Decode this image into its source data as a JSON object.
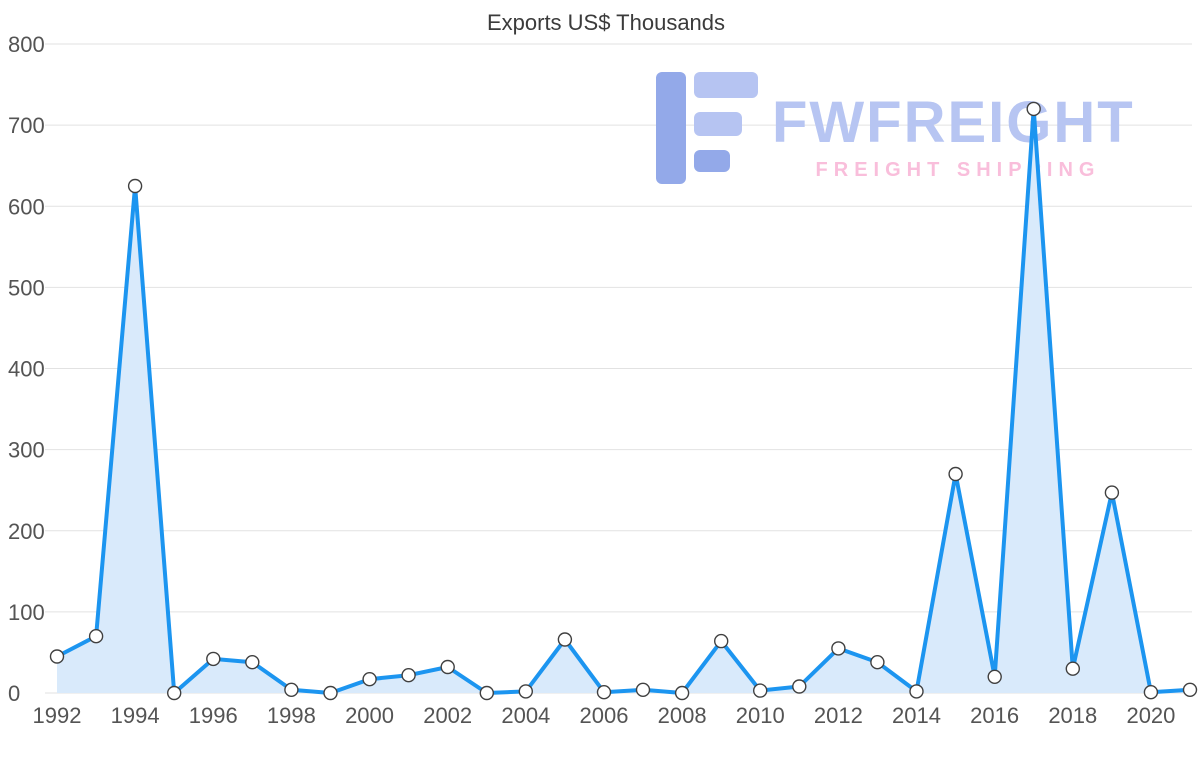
{
  "watermark": {
    "brand": "FWFREIGHT",
    "tagline": "FREIGHT SHIPPING",
    "brand_color": "#b7c5f2",
    "tagline_color": "#f9bedb",
    "logo_color_dark": "#93a9e9",
    "logo_color_light": "#b6c4f2"
  },
  "chart_data": {
    "type": "line",
    "title": "Exports US$ Thousands",
    "x": [
      1992,
      1993,
      1994,
      1995,
      1996,
      1997,
      1998,
      1999,
      2000,
      2001,
      2002,
      2003,
      2004,
      2005,
      2006,
      2007,
      2008,
      2009,
      2010,
      2011,
      2012,
      2013,
      2014,
      2015,
      2016,
      2017,
      2018,
      2019,
      2020,
      2021
    ],
    "values": [
      45,
      70,
      625,
      0,
      42,
      38,
      4,
      0,
      17,
      22,
      32,
      0,
      2,
      66,
      1,
      4,
      0,
      64,
      3,
      8,
      55,
      38,
      2,
      270,
      20,
      720,
      30,
      247,
      1,
      4
    ],
    "xlabel": "",
    "ylabel": "",
    "ylim": [
      0,
      800
    ],
    "ytick_step": 100,
    "xtick_step": 2,
    "grid": true,
    "legend_position": "none",
    "line_color": "#1c95f0",
    "area_fill": "#d9eafb",
    "marker_fill": "#ffffff",
    "marker_stroke": "#404040",
    "axis_label_color": "#545454",
    "grid_color": "#e2e2e2"
  }
}
